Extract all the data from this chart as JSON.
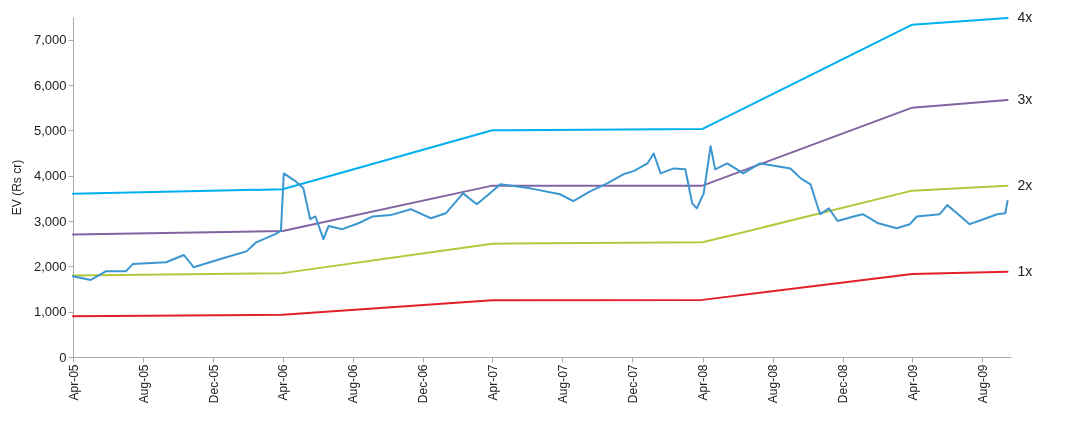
{
  "chart_data": {
    "type": "line",
    "ylabel": "EV (Rs cr)",
    "xlim": [
      "2005-04-01",
      "2009-09-20"
    ],
    "ylim": [
      0,
      7500
    ],
    "xticks": [
      {
        "value": "2005-04-01",
        "label": "Apr-05"
      },
      {
        "value": "2005-08-01",
        "label": "Aug-05"
      },
      {
        "value": "2005-12-01",
        "label": "Dec-05"
      },
      {
        "value": "2006-04-01",
        "label": "Apr-06"
      },
      {
        "value": "2006-08-01",
        "label": "Aug-06"
      },
      {
        "value": "2006-12-01",
        "label": "Dec-06"
      },
      {
        "value": "2007-04-01",
        "label": "Apr-07"
      },
      {
        "value": "2007-08-01",
        "label": "Aug-07"
      },
      {
        "value": "2007-12-01",
        "label": "Dec-07"
      },
      {
        "value": "2008-04-01",
        "label": "Apr-08"
      },
      {
        "value": "2008-08-01",
        "label": "Aug-08"
      },
      {
        "value": "2008-12-01",
        "label": "Dec-08"
      },
      {
        "value": "2009-04-01",
        "label": "Apr-09"
      },
      {
        "value": "2009-08-01",
        "label": "Aug-09"
      }
    ],
    "yticks": [
      0,
      {
        "value": 1000,
        "label": "1,000"
      },
      {
        "value": 2000,
        "label": "2,000"
      },
      {
        "value": 3000,
        "label": "3,000"
      },
      {
        "value": 4000,
        "label": "4,000"
      },
      {
        "value": 5000,
        "label": "5,000"
      },
      {
        "value": 6000,
        "label": "6,000"
      },
      {
        "value": 7000,
        "label": "7,000"
      }
    ],
    "series": [
      {
        "name": "4x",
        "color": "#00b0f0",
        "x": [
          "2005-04-01",
          "2006-04-01",
          "2007-04-01",
          "2008-04-01",
          "2009-04-01",
          "2009-09-14"
        ],
        "values": [
          3600,
          3700,
          5000,
          5030,
          7330,
          7480
        ]
      },
      {
        "name": "3x",
        "color": "#8064a2",
        "x": [
          "2005-04-01",
          "2006-04-01",
          "2007-04-01",
          "2008-04-01",
          "2009-04-01",
          "2009-09-14"
        ],
        "values": [
          2700,
          2780,
          3780,
          3780,
          5500,
          5670
        ]
      },
      {
        "name": "2x",
        "color": "#b5c83c",
        "x": [
          "2005-04-01",
          "2006-04-01",
          "2007-04-01",
          "2008-04-01",
          "2009-04-01",
          "2009-09-14"
        ],
        "values": [
          1800,
          1850,
          2500,
          2530,
          3670,
          3780
        ]
      },
      {
        "name": "1x",
        "color": "#e3202a",
        "x": [
          "2005-04-01",
          "2006-04-01",
          "2007-04-01",
          "2008-04-01",
          "2009-04-01",
          "2009-09-14"
        ],
        "values": [
          900,
          930,
          1250,
          1260,
          1830,
          1880
        ]
      },
      {
        "color": "#3c96d0",
        "x": [
          "2005-04-01",
          "2005-05-02",
          "2005-05-28",
          "2005-07-02",
          "2005-07-14",
          "2005-09-10",
          "2005-10-11",
          "2005-10-28",
          "2005-12-18",
          "2006-01-28",
          "2006-02-14",
          "2006-03-19",
          "2006-03-29",
          "2006-04-03",
          "2006-04-23",
          "2006-05-07",
          "2006-05-19",
          "2006-05-28",
          "2006-06-11",
          "2006-06-20",
          "2006-07-14",
          "2006-08-11",
          "2006-09-05",
          "2006-10-06",
          "2006-11-10",
          "2006-12-15",
          "2007-01-10",
          "2007-02-09",
          "2007-03-05",
          "2007-03-28",
          "2007-04-15",
          "2007-06-06",
          "2007-07-28",
          "2007-08-20",
          "2007-09-19",
          "2007-10-18",
          "2007-11-15",
          "2007-12-03",
          "2007-12-27",
          "2008-01-07",
          "2008-01-19",
          "2008-02-11",
          "2008-03-02",
          "2008-03-14",
          "2008-03-22",
          "2008-04-03",
          "2008-04-15",
          "2008-04-23",
          "2008-05-14",
          "2008-06-11",
          "2008-07-10",
          "2008-08-09",
          "2008-09-01",
          "2008-09-19",
          "2008-10-06",
          "2008-10-18",
          "2008-10-23",
          "2008-11-07",
          "2008-11-22",
          "2008-12-20",
          "2009-01-05",
          "2009-02-01",
          "2009-03-05",
          "2009-03-28",
          "2009-04-09",
          "2009-05-19",
          "2009-06-01",
          "2009-06-18",
          "2009-07-10",
          "2009-08-03",
          "2009-08-27",
          "2009-09-10",
          "2009-09-14"
        ],
        "values": [
          1780,
          1700,
          1890,
          1890,
          2050,
          2090,
          2250,
          1980,
          2180,
          2330,
          2530,
          2710,
          2780,
          4050,
          3880,
          3720,
          3040,
          3100,
          2600,
          2890,
          2820,
          2950,
          3100,
          3130,
          3260,
          3060,
          3170,
          3610,
          3370,
          3610,
          3810,
          3720,
          3590,
          3440,
          3660,
          3830,
          4030,
          4100,
          4270,
          4490,
          4050,
          4160,
          4140,
          3390,
          3280,
          3610,
          4650,
          4140,
          4270,
          4050,
          4270,
          4210,
          4160,
          3940,
          3810,
          3330,
          3150,
          3280,
          3000,
          3100,
          3150,
          2950,
          2840,
          2930,
          3100,
          3150,
          3350,
          3170,
          2930,
          3040,
          3150,
          3170,
          3440
        ]
      }
    ]
  }
}
